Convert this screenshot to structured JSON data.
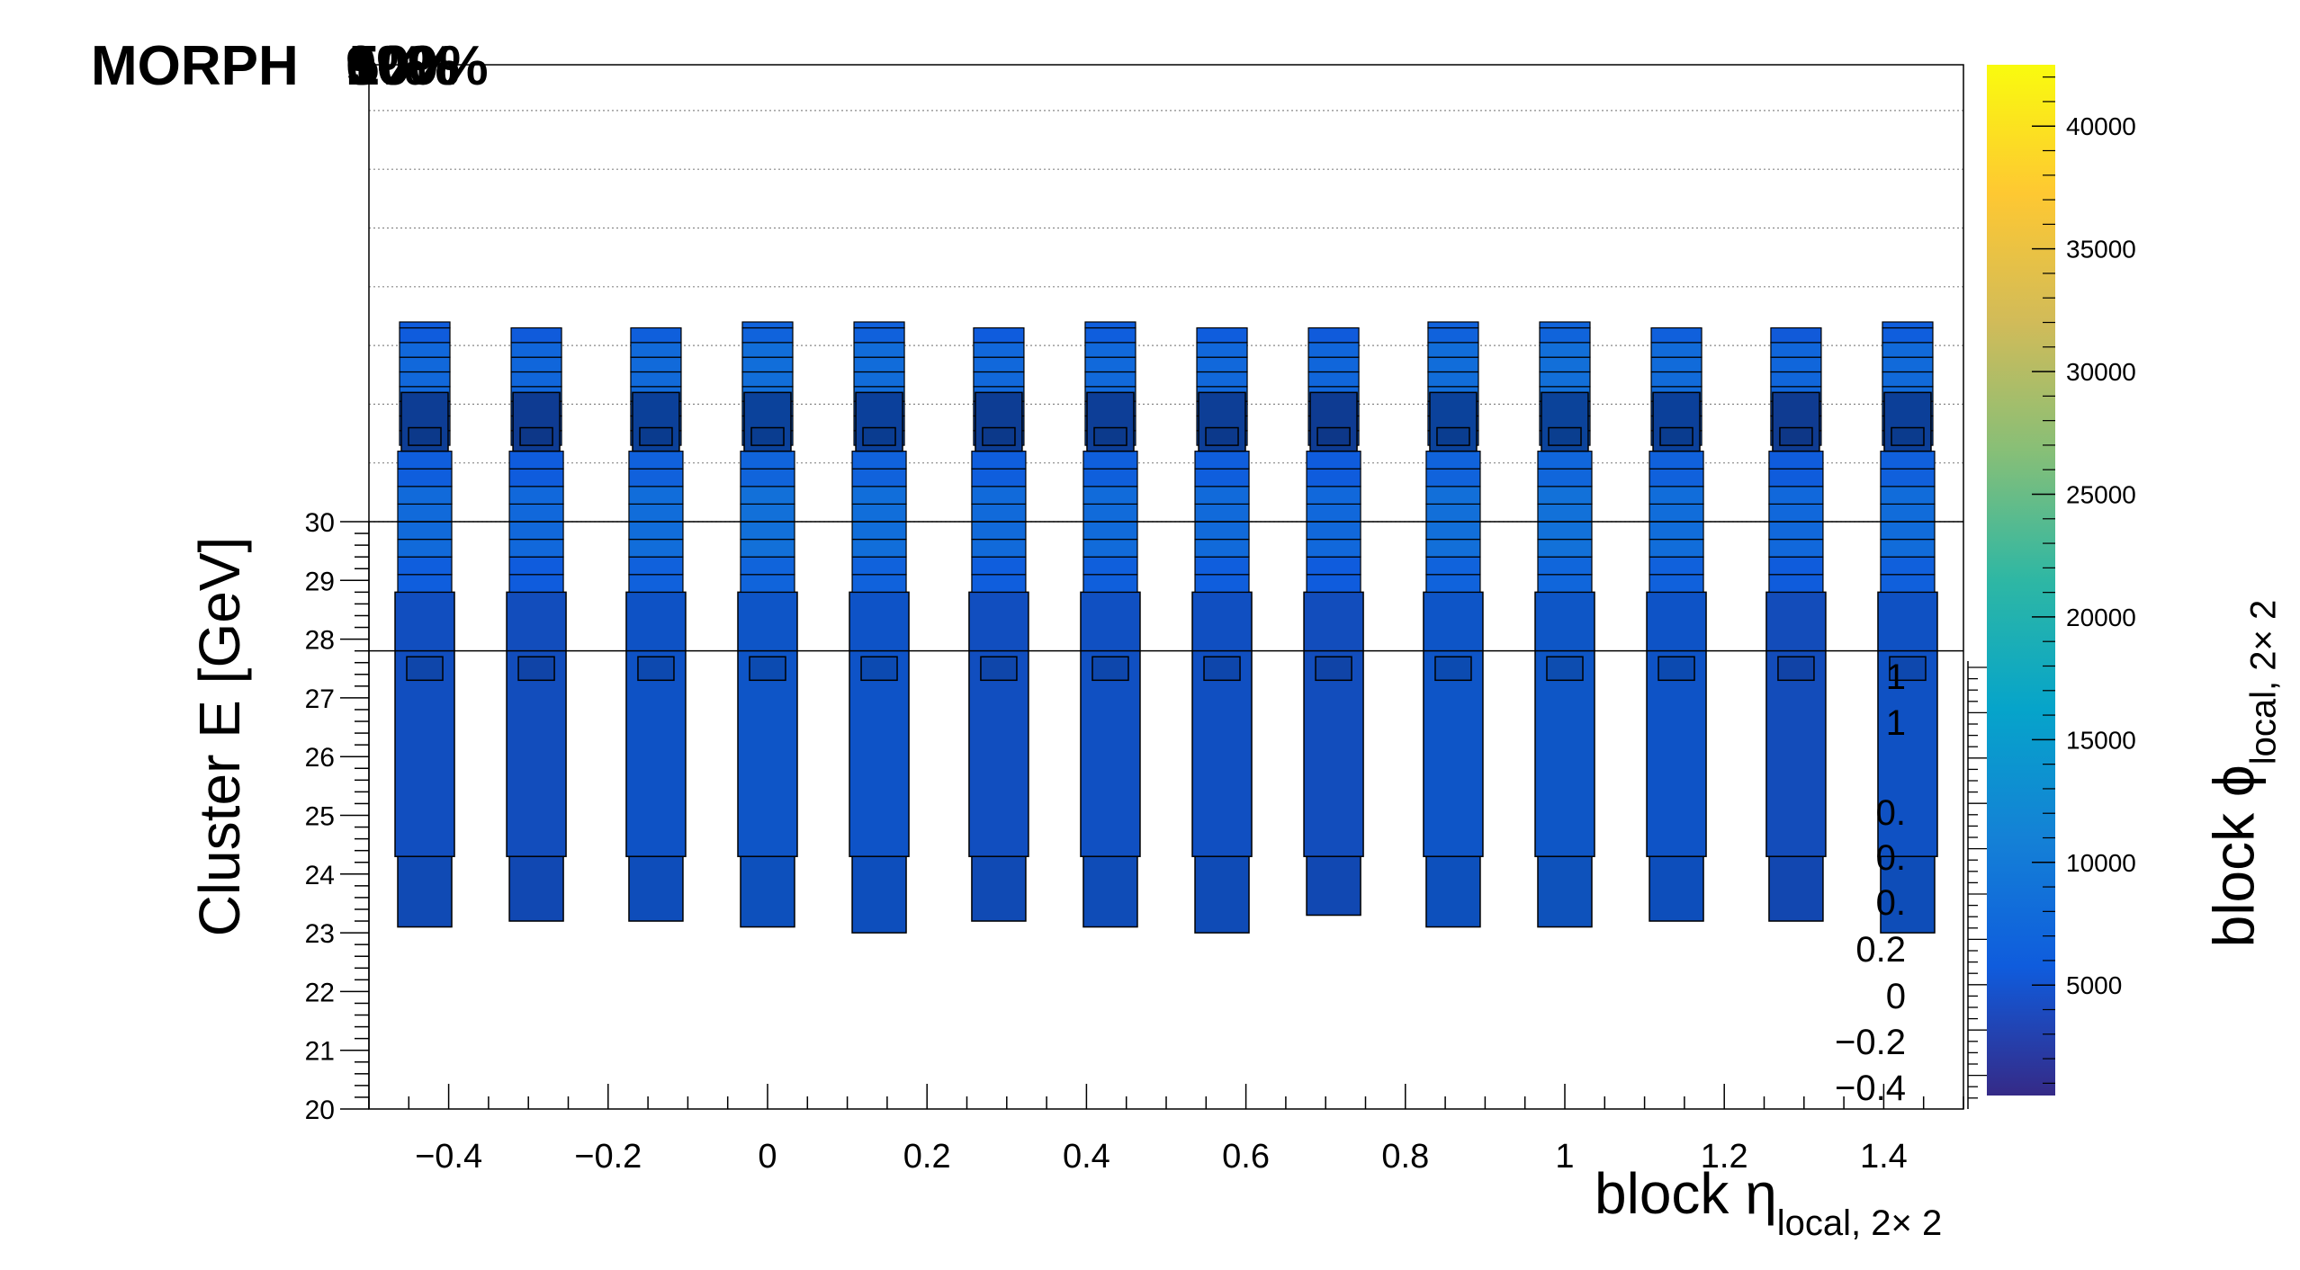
{
  "header": {
    "label": "MORPH",
    "percent_overlays": [
      "100%",
      "50%",
      "0%",
      "10%",
      "90%"
    ]
  },
  "chart_data": {
    "type": "heatmap",
    "title": "",
    "xlabel": "block η",
    "xlabel_sub": "local, 2× 2",
    "ylabel": "Cluster E  [GeV]",
    "zlabel": "block ϕ",
    "zlabel_sub": "local, 2× 2",
    "xlim": [
      -0.5,
      1.5
    ],
    "ylim": [
      20,
      30
    ],
    "zlim": [
      500,
      42500
    ],
    "x_ticks": [
      -0.4,
      -0.2,
      0,
      0.2,
      0.4,
      0.6,
      0.8,
      1,
      1.2,
      1.4
    ],
    "x_tick_labels": [
      "−0.4",
      "−0.2",
      "0",
      "0.2",
      "0.4",
      "0.6",
      "0.8",
      "1",
      "1.2",
      "1.4"
    ],
    "y_ticks": [
      20,
      21,
      22,
      23,
      24,
      25,
      26,
      27,
      28,
      29,
      30
    ],
    "z_ticks": [
      5000,
      10000,
      15000,
      20000,
      25000,
      30000,
      35000,
      40000
    ],
    "overlay_axis_labels": [
      "1",
      "1",
      "0.",
      "0.",
      "0.",
      "0.2",
      "0",
      "−0.2",
      "−0.4"
    ],
    "grid": true,
    "legend": "none",
    "colormap": [
      "#352a87",
      "#0f5cdd",
      "#1481d6",
      "#06a4ca",
      "#2eb7a4",
      "#87bf77",
      "#d1bb59",
      "#fec832",
      "#f9fb0e"
    ],
    "columns": [
      {
        "eta": -0.43,
        "e_min": 23.1,
        "e_max": 33.4,
        "z": 5200
      },
      {
        "eta": -0.29,
        "e_min": 23.2,
        "e_max": 33.3,
        "z": 5000
      },
      {
        "eta": -0.14,
        "e_min": 23.2,
        "e_max": 33.3,
        "z": 5600
      },
      {
        "eta": 0.0,
        "e_min": 23.1,
        "e_max": 33.4,
        "z": 6100
      },
      {
        "eta": 0.14,
        "e_min": 23.0,
        "e_max": 33.4,
        "z": 5800
      },
      {
        "eta": 0.29,
        "e_min": 23.2,
        "e_max": 33.3,
        "z": 5200
      },
      {
        "eta": 0.43,
        "e_min": 23.1,
        "e_max": 33.4,
        "z": 5400
      },
      {
        "eta": 0.57,
        "e_min": 23.0,
        "e_max": 33.3,
        "z": 5300
      },
      {
        "eta": 0.71,
        "e_min": 23.3,
        "e_max": 33.3,
        "z": 5000
      },
      {
        "eta": 0.86,
        "e_min": 23.1,
        "e_max": 33.4,
        "z": 6000
      },
      {
        "eta": 1.0,
        "e_min": 23.1,
        "e_max": 33.4,
        "z": 6300
      },
      {
        "eta": 1.14,
        "e_min": 23.2,
        "e_max": 33.3,
        "z": 5700
      },
      {
        "eta": 1.29,
        "e_min": 23.2,
        "e_max": 33.3,
        "z": 4900
      },
      {
        "eta": 1.43,
        "e_min": 23.0,
        "e_max": 33.4,
        "z": 5500
      }
    ]
  }
}
